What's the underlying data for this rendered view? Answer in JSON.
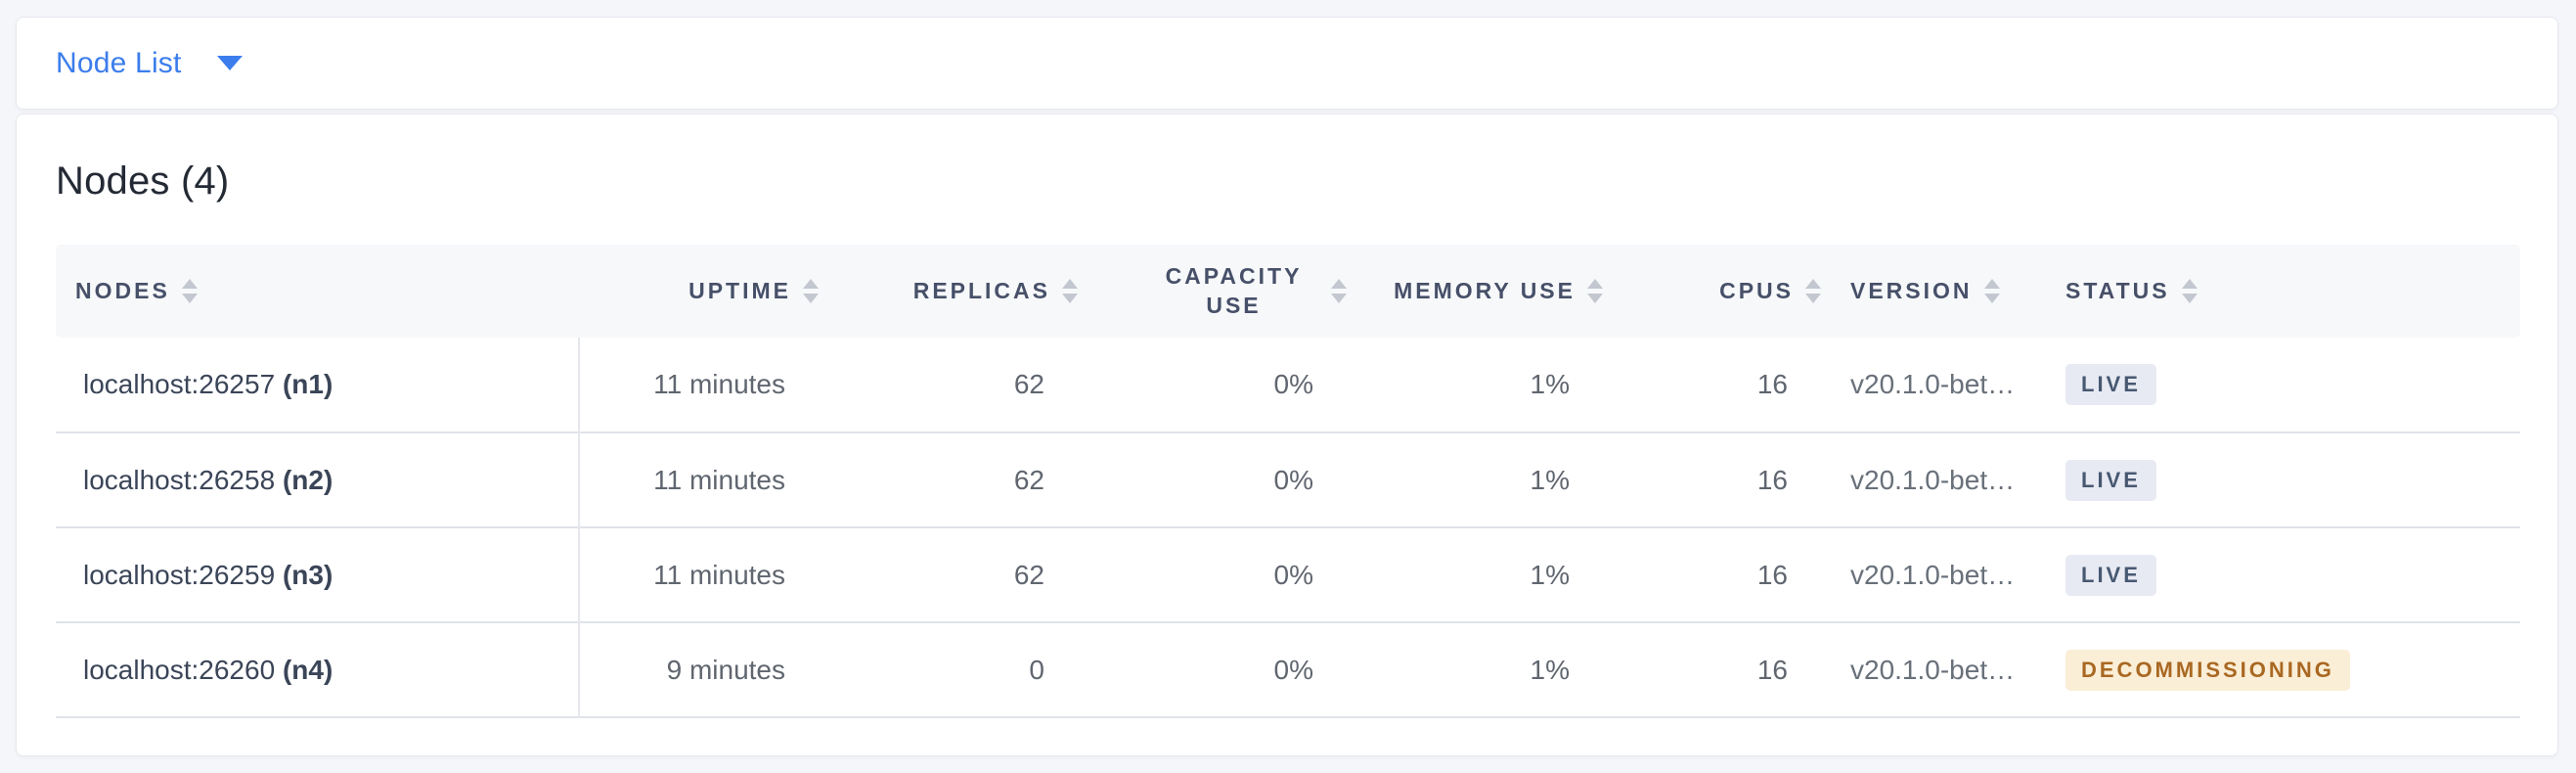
{
  "toolbar": {
    "dropdown_label": "Node List"
  },
  "main": {
    "title": "Nodes (4)",
    "table": {
      "columns": [
        {
          "key": "nodes",
          "label": "NODES",
          "align": "left"
        },
        {
          "key": "uptime",
          "label": "UPTIME",
          "align": "right"
        },
        {
          "key": "replicas",
          "label": "REPLICAS",
          "align": "right"
        },
        {
          "key": "capacity",
          "label": "CAPACITY USE",
          "align": "right"
        },
        {
          "key": "memory",
          "label": "MEMORY USE",
          "align": "right"
        },
        {
          "key": "cpus",
          "label": "CPUS",
          "align": "right"
        },
        {
          "key": "version",
          "label": "VERSION",
          "align": "left"
        },
        {
          "key": "status",
          "label": "STATUS",
          "align": "left"
        }
      ],
      "rows": [
        {
          "address": "localhost:26257",
          "node_id": "(n1)",
          "uptime": "11 minutes",
          "replicas": "62",
          "capacity": "0%",
          "memory": "1%",
          "cpus": "16",
          "version": "v20.1.0-bet…",
          "status": "LIVE",
          "status_type": "live"
        },
        {
          "address": "localhost:26258",
          "node_id": "(n2)",
          "uptime": "11 minutes",
          "replicas": "62",
          "capacity": "0%",
          "memory": "1%",
          "cpus": "16",
          "version": "v20.1.0-bet…",
          "status": "LIVE",
          "status_type": "live"
        },
        {
          "address": "localhost:26259",
          "node_id": "(n3)",
          "uptime": "11 minutes",
          "replicas": "62",
          "capacity": "0%",
          "memory": "1%",
          "cpus": "16",
          "version": "v20.1.0-bet…",
          "status": "LIVE",
          "status_type": "live"
        },
        {
          "address": "localhost:26260",
          "node_id": "(n4)",
          "uptime": "9 minutes",
          "replicas": "0",
          "capacity": "0%",
          "memory": "1%",
          "cpus": "16",
          "version": "v20.1.0-bet…",
          "status": "DECOMMISSIONING",
          "status_type": "decommissioning"
        }
      ]
    }
  },
  "colors": {
    "accent_blue": "#3b7dec",
    "page_background": "#f5f6fa",
    "header_background": "#f7f8fa",
    "header_text": "#475069",
    "body_text": "#60666f",
    "node_address_text": "#3b4558",
    "badge_live_bg": "#e7eaf2",
    "badge_live_text": "#475872",
    "badge_decommissioning_bg": "#fbeed7",
    "badge_decommissioning_text": "#a96822"
  }
}
